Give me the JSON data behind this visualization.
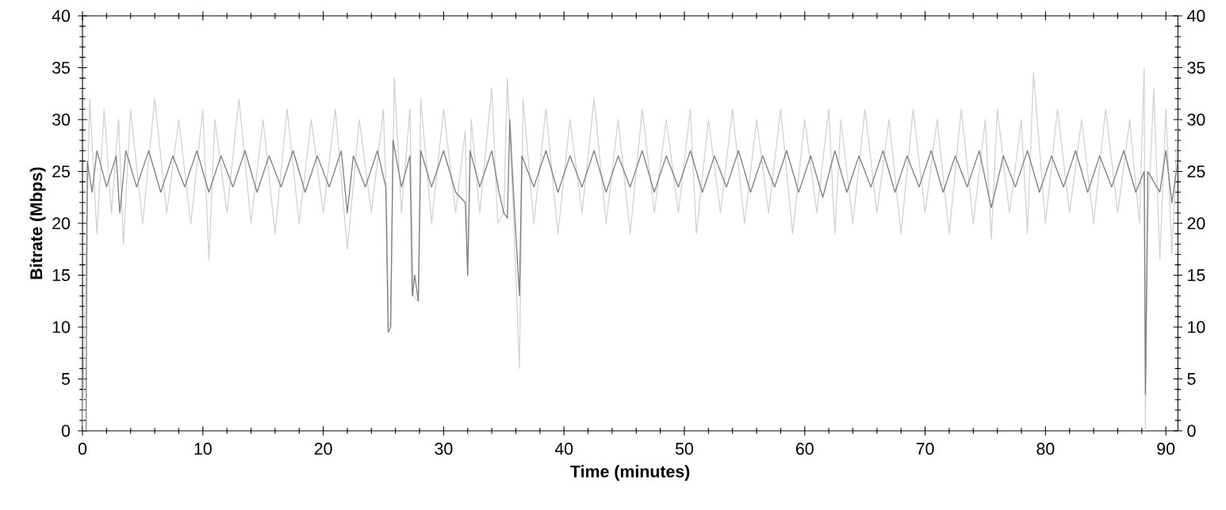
{
  "chart_data": {
    "type": "line",
    "xlabel": "Time (minutes)",
    "ylabel": "Bitrate (Mbps)",
    "xlim": [
      0,
      91
    ],
    "xticks": [
      0,
      10,
      20,
      30,
      40,
      50,
      60,
      70,
      80,
      90
    ],
    "ylim": [
      0,
      40
    ],
    "yticks": [
      0,
      5,
      10,
      15,
      20,
      25,
      30,
      35,
      40
    ],
    "y2lim": [
      0,
      40
    ],
    "y2ticks": [
      0,
      5,
      10,
      15,
      20,
      25,
      30,
      35,
      40
    ],
    "marker": "none",
    "line_style": "solid",
    "series": [
      {
        "color": "#d3d3d3",
        "x": [
          0,
          0.3,
          0.6,
          1.2,
          1.8,
          2.4,
          3,
          3.4,
          4,
          5,
          6,
          7,
          8,
          9,
          10,
          10.5,
          11,
          12,
          13,
          14,
          15,
          16,
          17,
          18,
          19,
          20,
          21,
          22,
          23,
          24,
          25,
          25.3,
          25.4,
          25.6,
          25.9,
          26.5,
          27.2,
          27.5,
          27.9,
          28.1,
          29,
          30,
          31,
          31.8,
          32,
          32.3,
          33,
          34,
          34.5,
          35,
          35.3,
          35.8,
          36.3,
          36.6,
          37.5,
          38.5,
          39.5,
          40.5,
          41.5,
          42.5,
          43.5,
          44.5,
          45.5,
          46.5,
          47.5,
          48.5,
          49.5,
          50.5,
          51,
          52,
          53,
          54,
          55,
          56,
          57,
          58,
          59,
          60,
          61,
          62,
          62.5,
          63,
          64,
          65,
          66,
          67,
          68,
          69,
          70,
          71,
          72,
          73,
          74,
          75,
          75.5,
          76,
          77,
          78,
          78.5,
          79,
          80,
          81,
          82,
          83,
          84,
          85,
          86,
          87,
          87.8,
          88.2,
          88.3,
          88.5,
          89,
          89.5,
          90,
          90.5,
          91
        ],
        "values": [
          0,
          17,
          32,
          19,
          31,
          21,
          30,
          18,
          31,
          20,
          32,
          21,
          30,
          20,
          31,
          16.5,
          30,
          21,
          32,
          20,
          30,
          19,
          31,
          20,
          30,
          21,
          31,
          17.5,
          30,
          21,
          31,
          20,
          10,
          10.5,
          34,
          21,
          31,
          13,
          12.5,
          32,
          20,
          31,
          21,
          29,
          15,
          30,
          21,
          33,
          20,
          21,
          34,
          21,
          6,
          32,
          20,
          31,
          19,
          30,
          21,
          32,
          20,
          30,
          19,
          31,
          21,
          30,
          21,
          31,
          19,
          30,
          21,
          31,
          20,
          30,
          21,
          31,
          19,
          30,
          21,
          31,
          19,
          30,
          20,
          31,
          21,
          30,
          19,
          31,
          21,
          30,
          19,
          31,
          20,
          30,
          18.5,
          31,
          21,
          30,
          19,
          34.5,
          20,
          31,
          21,
          30,
          20,
          31,
          21,
          30,
          20,
          35,
          0,
          20,
          33,
          16.5,
          31,
          17,
          30
        ]
      },
      {
        "color": "#808080",
        "x": [
          0,
          0.3,
          0.4,
          0.8,
          1.2,
          2,
          2.8,
          3.1,
          3.6,
          4.5,
          5.5,
          6.5,
          7.5,
          8.5,
          9.5,
          10.5,
          11.5,
          12.5,
          13.5,
          14.5,
          15.5,
          16.5,
          17.5,
          18.5,
          19.5,
          20.5,
          21.5,
          22,
          22.5,
          23.5,
          24.5,
          25.2,
          25.4,
          25.6,
          25.8,
          26.5,
          27.2,
          27.4,
          27.6,
          27.9,
          28.1,
          29,
          30,
          31,
          31.8,
          32,
          32.2,
          33,
          34,
          34.6,
          35,
          35.3,
          35.5,
          35.8,
          36.3,
          36.5,
          37.5,
          38.5,
          39.5,
          40.5,
          41.5,
          42.5,
          43.5,
          44.5,
          45.5,
          46.5,
          47.5,
          48.5,
          49.5,
          50.5,
          51.5,
          52.5,
          53.5,
          54.5,
          55.5,
          56.5,
          57.5,
          58.5,
          59.5,
          60.5,
          61.5,
          62.5,
          63.5,
          64.5,
          65.5,
          66.5,
          67.5,
          68.5,
          69.5,
          70.5,
          71.5,
          72.5,
          73.5,
          74.5,
          75.5,
          76.5,
          77.5,
          78.5,
          79.5,
          80.5,
          81.5,
          82.5,
          83.5,
          84.5,
          85.5,
          86.5,
          87.5,
          88.2,
          88.3,
          88.5,
          89.5,
          90,
          90.5,
          91
        ],
        "values": [
          0,
          0,
          26,
          23,
          27,
          23.5,
          26.5,
          21,
          27,
          23.5,
          27,
          23,
          26.5,
          23.5,
          27,
          23,
          26.5,
          23.5,
          27,
          23,
          26.5,
          23.5,
          27,
          23,
          26.5,
          23.5,
          27,
          21,
          26.5,
          23.5,
          27,
          23.5,
          9.5,
          10,
          28,
          23.5,
          26.5,
          13,
          15,
          12.5,
          27,
          23.5,
          27,
          23,
          22,
          15,
          27,
          23.5,
          27,
          23,
          21,
          20.5,
          30,
          23,
          13,
          26.5,
          23.5,
          27,
          23,
          26.5,
          23.5,
          27,
          23,
          26.5,
          23.5,
          27,
          23,
          26.5,
          23.5,
          27,
          23,
          26.5,
          23.5,
          27,
          23,
          26.5,
          23.5,
          27,
          23,
          26.5,
          22.5,
          27,
          23,
          26.5,
          23.5,
          27,
          23,
          26.5,
          23.5,
          27,
          23,
          26.5,
          23.5,
          27,
          21.5,
          26.5,
          23.5,
          27,
          23,
          26.5,
          23.5,
          27,
          23,
          26.5,
          23.5,
          27,
          23,
          25,
          3.5,
          25,
          23,
          27,
          22,
          26
        ]
      }
    ]
  }
}
